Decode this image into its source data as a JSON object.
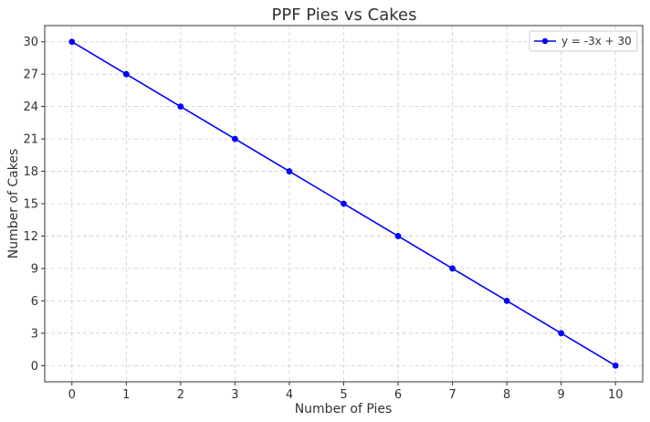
{
  "chart_data": {
    "type": "line",
    "title": "PPF Pies vs Cakes",
    "xlabel": "Number of Pies",
    "ylabel": "Number of Cakes",
    "xlim": [
      -0.5,
      10.5
    ],
    "ylim": [
      -1.5,
      31.5
    ],
    "xticks": [
      0,
      1,
      2,
      3,
      4,
      5,
      6,
      7,
      8,
      9,
      10
    ],
    "yticks": [
      0,
      3,
      6,
      9,
      12,
      15,
      18,
      21,
      24,
      27,
      30
    ],
    "grid": true,
    "legend_position": "top-right",
    "series": [
      {
        "name": "y = -3x + 30",
        "color": "#0000ff",
        "marker": "circle",
        "x": [
          0,
          1,
          2,
          3,
          4,
          5,
          6,
          7,
          8,
          9,
          10
        ],
        "y": [
          30,
          27,
          24,
          21,
          18,
          15,
          12,
          9,
          6,
          3,
          0
        ]
      }
    ]
  }
}
